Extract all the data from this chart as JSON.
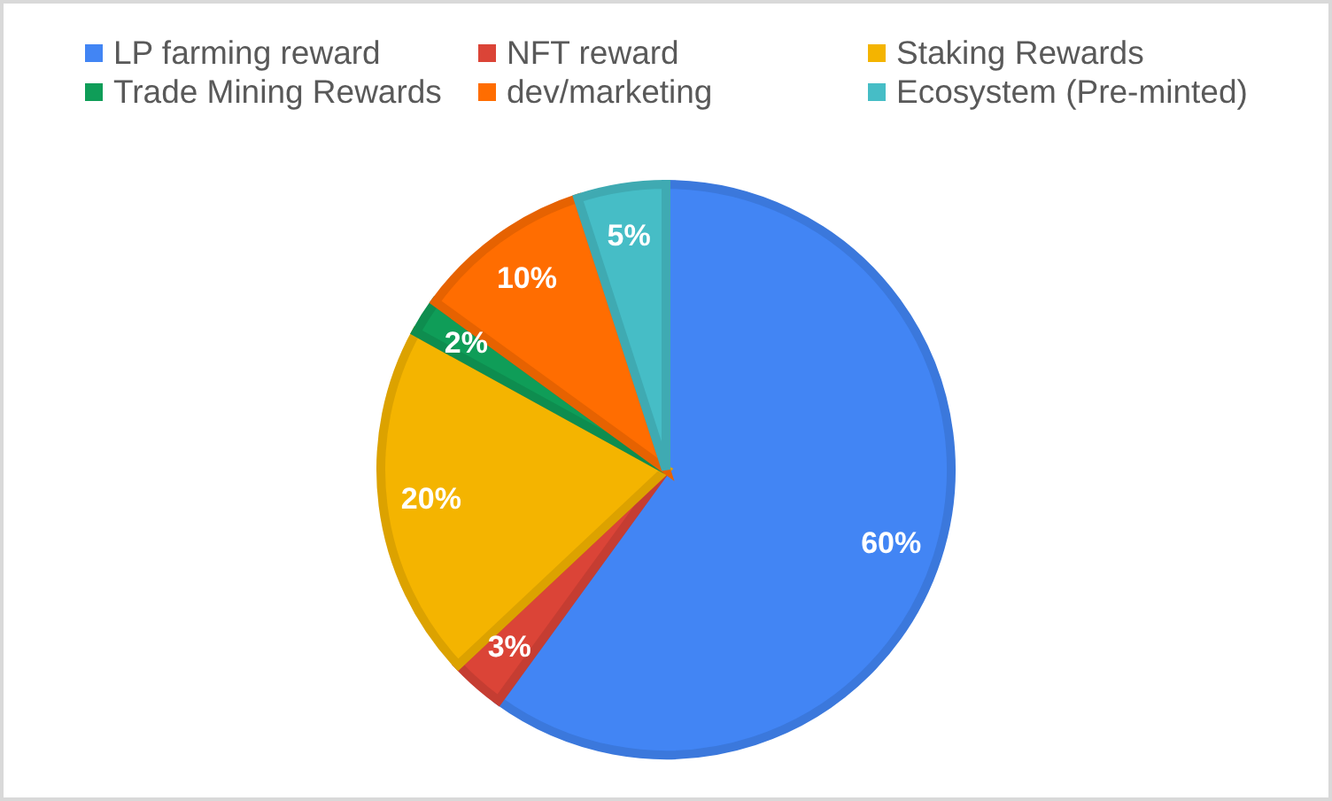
{
  "chart_data": {
    "type": "pie",
    "categories": [
      "LP farming reward",
      "NFT reward",
      "Staking Rewards",
      "Trade Mining Rewards",
      "dev/marketing",
      "Ecosystem (Pre-minted)"
    ],
    "values": [
      60,
      3,
      20,
      2,
      10,
      5
    ],
    "colors": [
      "#4285f4",
      "#db4437",
      "#f4b400",
      "#0f9d58",
      "#ff6d01",
      "#46bdc6"
    ],
    "value_labels": [
      "60%",
      "3%",
      "20%",
      "2%",
      "10%",
      "5%"
    ],
    "legend": "top"
  }
}
